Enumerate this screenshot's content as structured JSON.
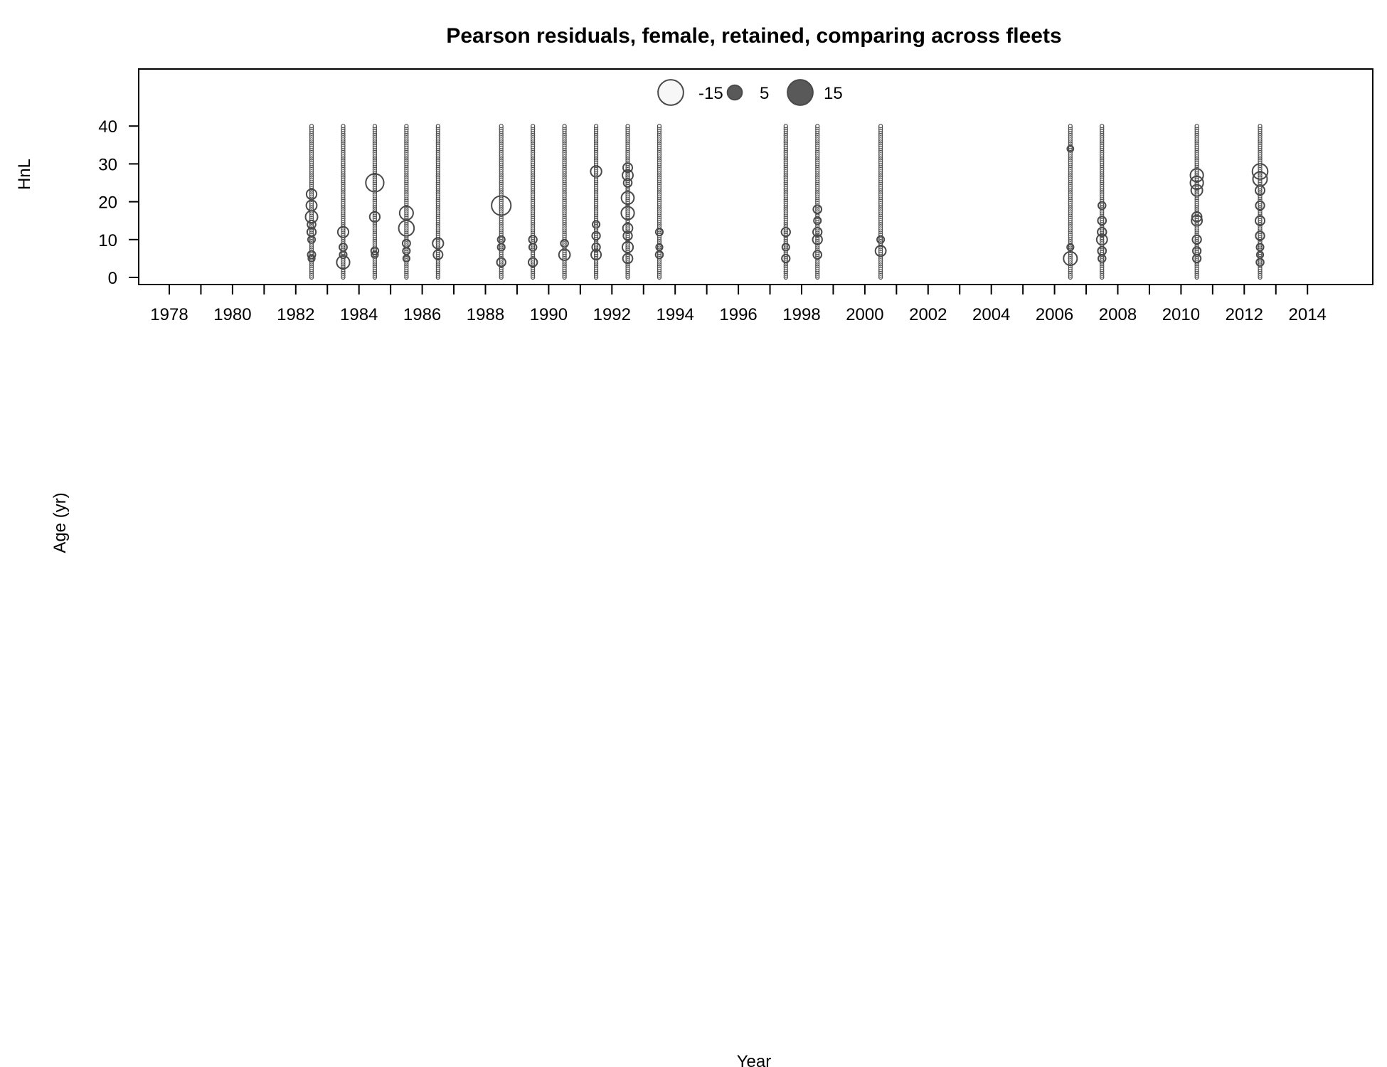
{
  "chart_data": {
    "type": "bubble",
    "title": "Pearson residuals, female, retained, comparing across fleets",
    "xlabel": "Year",
    "ylabel": "Age (yr)",
    "panel_label": "HnL",
    "xlim": [
      1977,
      2016
    ],
    "ylim": [
      -2,
      55
    ],
    "x_ticks": [
      1978,
      1979,
      1980,
      1981,
      1982,
      1983,
      1984,
      1985,
      1986,
      1987,
      1988,
      1989,
      1990,
      1991,
      1992,
      1993,
      1994,
      1995,
      1996,
      1997,
      1998,
      1999,
      2000,
      2001,
      2002,
      2003,
      2004,
      2005,
      2006,
      2007,
      2008,
      2009,
      2010,
      2011,
      2012,
      2013,
      2014
    ],
    "x_tick_labels": [
      "1978",
      "",
      "1980",
      "",
      "1982",
      "",
      "1984",
      "",
      "1986",
      "",
      "1988",
      "",
      "1990",
      "",
      "1992",
      "",
      "1994",
      "",
      "1996",
      "",
      "1998",
      "",
      "2000",
      "",
      "2002",
      "",
      "2004",
      "",
      "2006",
      "",
      "2008",
      "",
      "2010",
      "",
      "2012",
      "",
      "2014"
    ],
    "y_ticks": [
      0,
      10,
      20,
      30,
      40
    ],
    "y_tick_labels": [
      "0",
      "10",
      "20",
      "30",
      "40"
    ],
    "legend": {
      "placement": "top-center",
      "entries": [
        {
          "label": "-15",
          "value": -15,
          "fill": "#f7f7f7"
        },
        {
          "label": "5",
          "value": 5,
          "fill": "#595959"
        },
        {
          "label": "15",
          "value": 15,
          "fill": "#595959"
        }
      ]
    },
    "colors": {
      "positive": "#595959",
      "negative": "#f7f7f7",
      "stroke": "#4a4a4a"
    },
    "years": [
      1982.5,
      1983.5,
      1984.5,
      1985.5,
      1986.5,
      1988.5,
      1989.5,
      1990.5,
      1991.5,
      1992.5,
      1993.5,
      1997.5,
      1998.5,
      2000.5,
      2006.5,
      2007.5,
      2010.5,
      2012.5
    ],
    "age_range": [
      0,
      40
    ],
    "baseline_residual": -0.3,
    "bubbles": [
      {
        "x": 1982.5,
        "y": 22,
        "r": -2.4
      },
      {
        "x": 1982.5,
        "y": 19,
        "r": -2.6
      },
      {
        "x": 1982.5,
        "y": 16,
        "r": -3.4
      },
      {
        "x": 1982.5,
        "y": 14,
        "r": -1.6
      },
      {
        "x": 1982.5,
        "y": 12,
        "r": -1.8
      },
      {
        "x": 1982.5,
        "y": 10,
        "r": -1.2
      },
      {
        "x": 1982.5,
        "y": 6,
        "r": -1.4
      },
      {
        "x": 1982.5,
        "y": 5,
        "r": -1.0
      },
      {
        "x": 1983.5,
        "y": 12,
        "r": -2.7
      },
      {
        "x": 1983.5,
        "y": 8,
        "r": -1.4
      },
      {
        "x": 1983.5,
        "y": 6,
        "r": -1.2
      },
      {
        "x": 1983.5,
        "y": 4,
        "r": -3.9
      },
      {
        "x": 1984.5,
        "y": 25,
        "r": -7.5
      },
      {
        "x": 1984.5,
        "y": 16,
        "r": -2.4
      },
      {
        "x": 1984.5,
        "y": 7,
        "r": -1.3
      },
      {
        "x": 1984.5,
        "y": 6,
        "r": -1.0
      },
      {
        "x": 1985.5,
        "y": 17,
        "r": -4.3
      },
      {
        "x": 1985.5,
        "y": 13,
        "r": -5.5
      },
      {
        "x": 1985.5,
        "y": 9,
        "r": -1.4
      },
      {
        "x": 1985.5,
        "y": 7,
        "r": -1.2
      },
      {
        "x": 1985.5,
        "y": 5,
        "r": -1.0
      },
      {
        "x": 1986.5,
        "y": 9,
        "r": -2.7
      },
      {
        "x": 1986.5,
        "y": 6,
        "r": -2.0
      },
      {
        "x": 1988.5,
        "y": 19,
        "r": -8.7
      },
      {
        "x": 1988.5,
        "y": 10,
        "r": -1.2
      },
      {
        "x": 1988.5,
        "y": 8,
        "r": -1.2
      },
      {
        "x": 1988.5,
        "y": 4,
        "r": -1.8
      },
      {
        "x": 1989.5,
        "y": 10,
        "r": -1.5
      },
      {
        "x": 1989.5,
        "y": 8,
        "r": -1.3
      },
      {
        "x": 1989.5,
        "y": 4,
        "r": -1.8
      },
      {
        "x": 1990.5,
        "y": 9,
        "r": -1.3
      },
      {
        "x": 1990.5,
        "y": 6,
        "r": -2.9
      },
      {
        "x": 1991.5,
        "y": 28,
        "r": -2.8
      },
      {
        "x": 1991.5,
        "y": 14,
        "r": -1.2
      },
      {
        "x": 1991.5,
        "y": 11,
        "r": -1.5
      },
      {
        "x": 1991.5,
        "y": 8,
        "r": -1.5
      },
      {
        "x": 1991.5,
        "y": 6,
        "r": -2.3
      },
      {
        "x": 1992.5,
        "y": 29,
        "r": -2.0
      },
      {
        "x": 1992.5,
        "y": 27,
        "r": -2.6
      },
      {
        "x": 1992.5,
        "y": 25,
        "r": -1.6
      },
      {
        "x": 1992.5,
        "y": 21,
        "r": -3.7
      },
      {
        "x": 1992.5,
        "y": 17,
        "r": -3.9
      },
      {
        "x": 1992.5,
        "y": 13,
        "r": -2.2
      },
      {
        "x": 1992.5,
        "y": 11,
        "r": -1.8
      },
      {
        "x": 1992.5,
        "y": 8,
        "r": -2.7
      },
      {
        "x": 1992.5,
        "y": 5,
        "r": -2.2
      },
      {
        "x": 1993.5,
        "y": 12,
        "r": -1.2
      },
      {
        "x": 1993.5,
        "y": 8,
        "r": -1.0
      },
      {
        "x": 1993.5,
        "y": 6,
        "r": -1.3
      },
      {
        "x": 1997.5,
        "y": 12,
        "r": -1.8
      },
      {
        "x": 1997.5,
        "y": 8,
        "r": -1.2
      },
      {
        "x": 1997.5,
        "y": 5,
        "r": -1.5
      },
      {
        "x": 1998.5,
        "y": 18,
        "r": -1.6
      },
      {
        "x": 1998.5,
        "y": 15,
        "r": -1.2
      },
      {
        "x": 1998.5,
        "y": 12,
        "r": -1.8
      },
      {
        "x": 1998.5,
        "y": 10,
        "r": -2.1
      },
      {
        "x": 1998.5,
        "y": 6,
        "r": -1.6
      },
      {
        "x": 2000.5,
        "y": 10,
        "r": -1.2
      },
      {
        "x": 2000.5,
        "y": 7,
        "r": -2.6
      },
      {
        "x": 2006.5,
        "y": 34,
        "r": -0.9
      },
      {
        "x": 2006.5,
        "y": 8,
        "r": -1.0
      },
      {
        "x": 2006.5,
        "y": 5,
        "r": -4.3
      },
      {
        "x": 2007.5,
        "y": 19,
        "r": -1.3
      },
      {
        "x": 2007.5,
        "y": 15,
        "r": -1.6
      },
      {
        "x": 2007.5,
        "y": 12,
        "r": -1.8
      },
      {
        "x": 2007.5,
        "y": 10,
        "r": -2.6
      },
      {
        "x": 2007.5,
        "y": 7,
        "r": -1.6
      },
      {
        "x": 2007.5,
        "y": 5,
        "r": -1.3
      },
      {
        "x": 2010.5,
        "y": 27,
        "r": -3.9
      },
      {
        "x": 2010.5,
        "y": 25,
        "r": -3.9
      },
      {
        "x": 2010.5,
        "y": 23,
        "r": -3.0
      },
      {
        "x": 2010.5,
        "y": 16,
        "r": -2.2
      },
      {
        "x": 2010.5,
        "y": 15,
        "r": -2.6
      },
      {
        "x": 2010.5,
        "y": 10,
        "r": -1.8
      },
      {
        "x": 2010.5,
        "y": 7,
        "r": -1.5
      },
      {
        "x": 2010.5,
        "y": 5,
        "r": -1.5
      },
      {
        "x": 2012.5,
        "y": 28,
        "r": -5.5
      },
      {
        "x": 2012.5,
        "y": 26,
        "r": -4.7
      },
      {
        "x": 2012.5,
        "y": 23,
        "r": -2.0
      },
      {
        "x": 2012.5,
        "y": 19,
        "r": -1.8
      },
      {
        "x": 2012.5,
        "y": 15,
        "r": -2.0
      },
      {
        "x": 2012.5,
        "y": 11,
        "r": -1.8
      },
      {
        "x": 2012.5,
        "y": 8,
        "r": -1.2
      },
      {
        "x": 2012.5,
        "y": 6,
        "r": -1.0
      },
      {
        "x": 2012.5,
        "y": 4,
        "r": -1.3
      }
    ]
  }
}
